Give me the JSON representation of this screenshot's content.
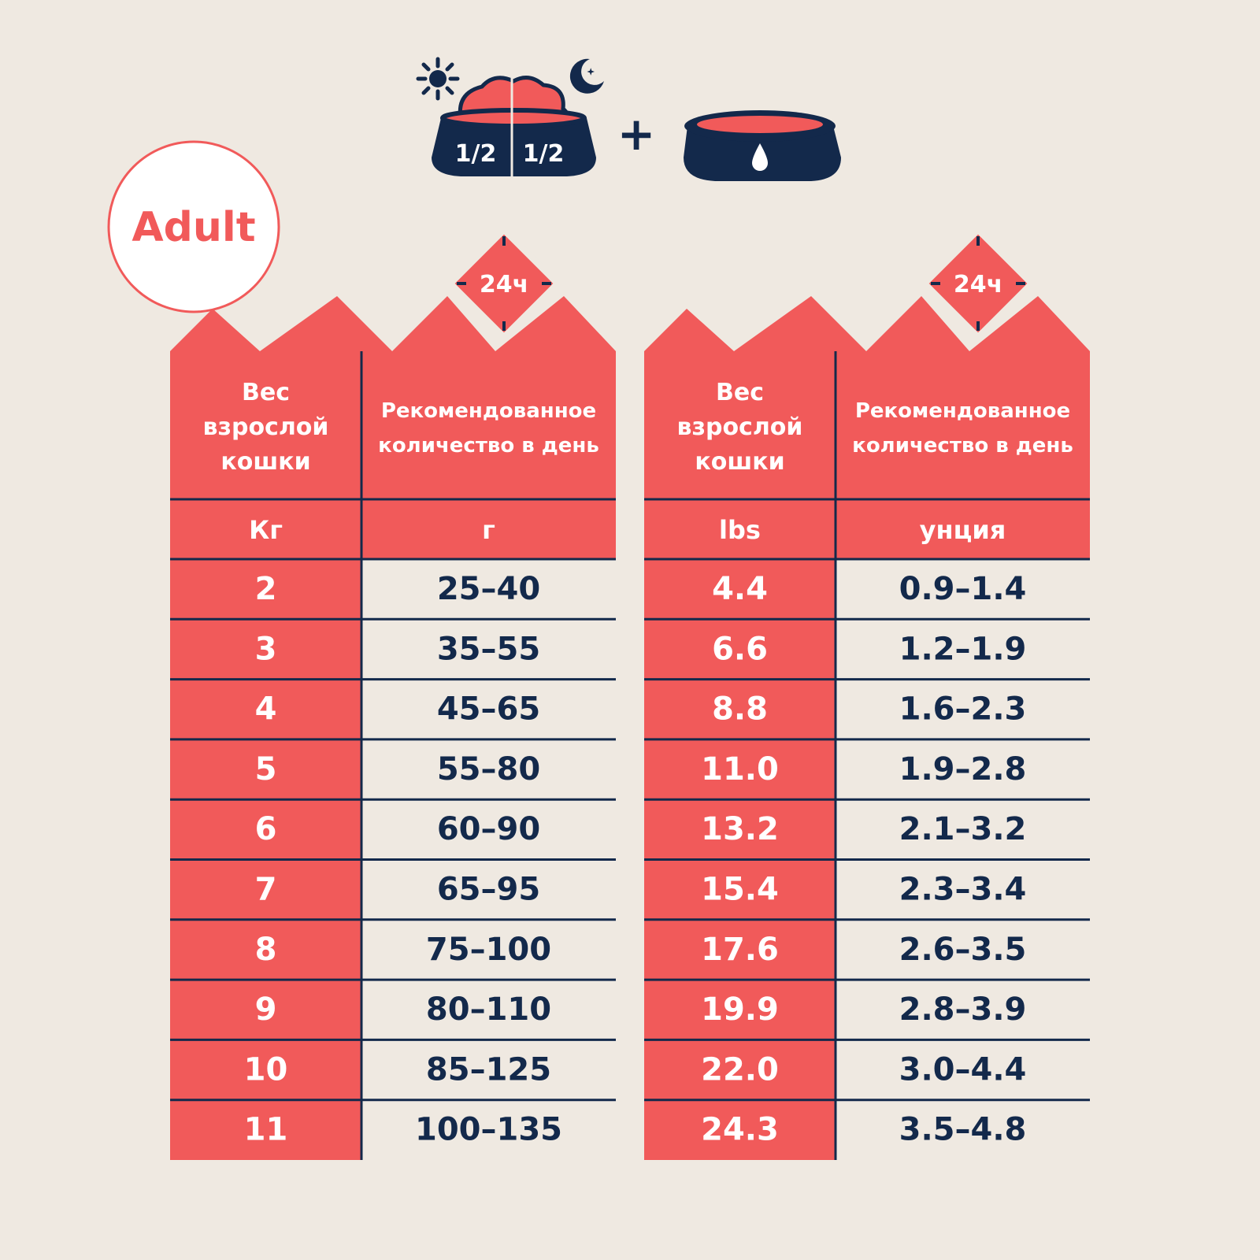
{
  "badge": {
    "label": "Adult"
  },
  "colors": {
    "accent": "#f15a5a",
    "navy": "#13294b",
    "background": "#efe9e1",
    "cell": "#efe9e1"
  },
  "icons": {
    "food_bowl": "food-bowl-icon",
    "water_bowl": "water-bowl-icon",
    "sun": "sun-icon",
    "moon": "moon-icon",
    "plus": "plus-icon",
    "clock_24h": "clock-24h-icon"
  },
  "header_icons": {
    "half_left": "1/2",
    "half_right": "1/2",
    "plus": "+"
  },
  "tables": [
    {
      "clock_label": "24ч",
      "col1_header": [
        "Вес",
        "взрослой",
        "кошки"
      ],
      "col2_header": [
        "Рекомендованное",
        "количество в день"
      ],
      "unit1": "Кг",
      "unit2": "г",
      "rows": [
        {
          "weight": "2",
          "amount": "25–40"
        },
        {
          "weight": "3",
          "amount": "35–55"
        },
        {
          "weight": "4",
          "amount": "45–65"
        },
        {
          "weight": "5",
          "amount": "55–80"
        },
        {
          "weight": "6",
          "amount": "60–90"
        },
        {
          "weight": "7",
          "amount": "65–95"
        },
        {
          "weight": "8",
          "amount": "75–100"
        },
        {
          "weight": "9",
          "amount": "80–110"
        },
        {
          "weight": "10",
          "amount": "85–125"
        },
        {
          "weight": "11",
          "amount": "100–135"
        }
      ]
    },
    {
      "clock_label": "24ч",
      "col1_header": [
        "Вес",
        "взрослой",
        "кошки"
      ],
      "col2_header": [
        "Рекомендованное",
        "количество в день"
      ],
      "unit1": "lbs",
      "unit2": "унция",
      "rows": [
        {
          "weight": "4.4",
          "amount": "0.9–1.4"
        },
        {
          "weight": "6.6",
          "amount": "1.2–1.9"
        },
        {
          "weight": "8.8",
          "amount": "1.6–2.3"
        },
        {
          "weight": "11.0",
          "amount": "1.9–2.8"
        },
        {
          "weight": "13.2",
          "amount": "2.1–3.2"
        },
        {
          "weight": "15.4",
          "amount": "2.3–3.4"
        },
        {
          "weight": "17.6",
          "amount": "2.6–3.5"
        },
        {
          "weight": "19.9",
          "amount": "2.8–3.9"
        },
        {
          "weight": "22.0",
          "amount": "3.0–4.4"
        },
        {
          "weight": "24.3",
          "amount": "3.5–4.8"
        }
      ]
    }
  ]
}
